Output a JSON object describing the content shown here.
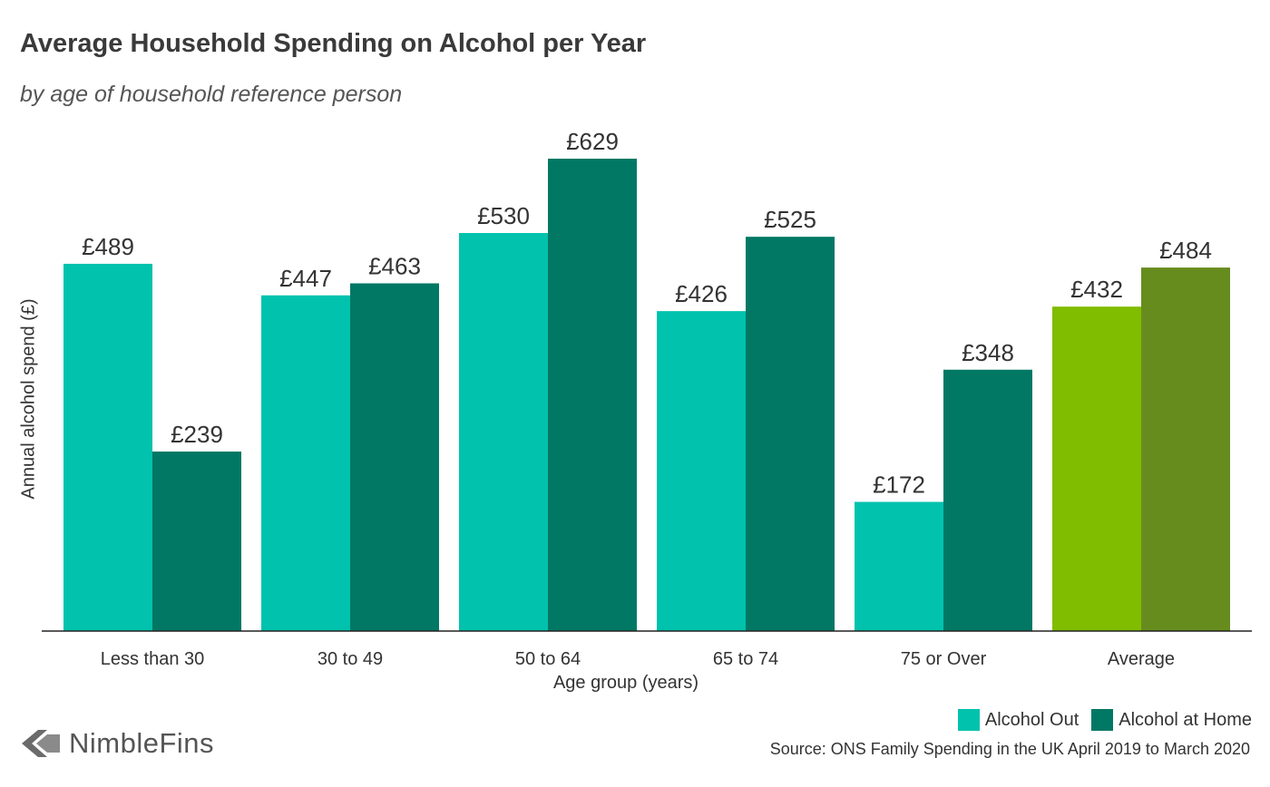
{
  "header": {
    "title": "Average Household Spending on Alcohol per Year",
    "subtitle": "by age of household reference person"
  },
  "legend": {
    "items": [
      {
        "label": "Alcohol Out",
        "color": "#00c2ad"
      },
      {
        "label": "Alcohol at Home",
        "color": "#017864"
      }
    ]
  },
  "footer": {
    "source": "Source: ONS Family Spending in the UK April 2019 to March 2020",
    "brand": "NimbleFins"
  },
  "chart_data": {
    "type": "bar",
    "title": "Average Household Spending on Alcohol per Year",
    "subtitle": "by age of household reference person",
    "xlabel": "Age group (years)",
    "ylabel": "Annual alcohol spend (£)",
    "categories": [
      "Less than 30",
      "30 to 49",
      "50 to 64",
      "65 to 74",
      "75 or Over",
      "Average"
    ],
    "series": [
      {
        "name": "Alcohol Out",
        "values": [
          489,
          447,
          530,
          426,
          172,
          432
        ],
        "color": "#00c2ad",
        "highlight_color": "#80bc00"
      },
      {
        "name": "Alcohol at Home",
        "values": [
          239,
          463,
          629,
          525,
          348,
          484
        ],
        "color": "#017864",
        "highlight_color": "#678c1e"
      }
    ],
    "value_prefix": "£",
    "highlight_category": "Average",
    "ylim": [
      0,
      629
    ],
    "grid": false,
    "legend_position": "bottom-right"
  }
}
